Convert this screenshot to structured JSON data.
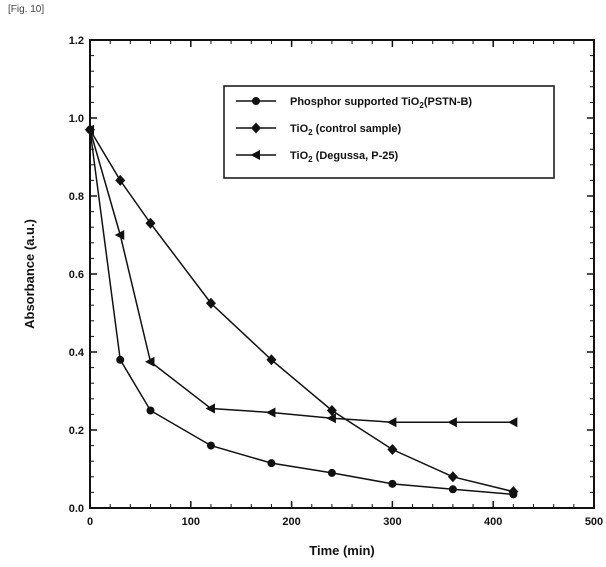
{
  "figure_label": "[Fig. 10]",
  "chart_data": {
    "type": "line",
    "title": "",
    "xlabel": "Time (min)",
    "ylabel": "Absorbance (a.u.)",
    "xlim": [
      0,
      500
    ],
    "ylim": [
      0,
      1.2
    ],
    "x_ticks": [
      0,
      100,
      200,
      300,
      400,
      500
    ],
    "x_tick_labels": [
      "0",
      "100",
      "200",
      "300",
      "400",
      "500"
    ],
    "y_ticks": [
      0,
      0.2,
      0.4,
      0.6,
      0.8,
      1.0,
      1.2
    ],
    "y_tick_labels": [
      "0.0",
      "0.2",
      "0.4",
      "0.6",
      "0.8",
      "1.0",
      "1.2"
    ],
    "grid": false,
    "legend_position": "top-right",
    "series": [
      {
        "name": "Phosphor supported TiO2(PSTN-B)",
        "legend_main": "Phosphor supported TiO",
        "legend_sub": "2",
        "legend_after": "(PSTN-B)",
        "marker": "circle",
        "x": [
          0,
          30,
          60,
          120,
          180,
          240,
          300,
          360,
          420
        ],
        "y": [
          0.97,
          0.38,
          0.25,
          0.16,
          0.115,
          0.09,
          0.062,
          0.048,
          0.035
        ]
      },
      {
        "name": "TiO2 (control sample)",
        "legend_main": "TiO",
        "legend_sub": "2",
        "legend_after": " (control sample)",
        "marker": "diamond",
        "x": [
          0,
          30,
          60,
          120,
          180,
          240,
          300,
          360,
          420
        ],
        "y": [
          0.97,
          0.84,
          0.73,
          0.525,
          0.38,
          0.25,
          0.15,
          0.08,
          0.042
        ]
      },
      {
        "name": "TiO2 (Degussa, P-25)",
        "legend_main": "TiO",
        "legend_sub": "2",
        "legend_after": " (Degussa, P-25)",
        "marker": "triangle-left",
        "x": [
          0,
          30,
          60,
          120,
          180,
          240,
          300,
          360,
          420
        ],
        "y": [
          0.97,
          0.7,
          0.375,
          0.255,
          0.245,
          0.23,
          0.22,
          0.22,
          0.22
        ]
      }
    ]
  }
}
